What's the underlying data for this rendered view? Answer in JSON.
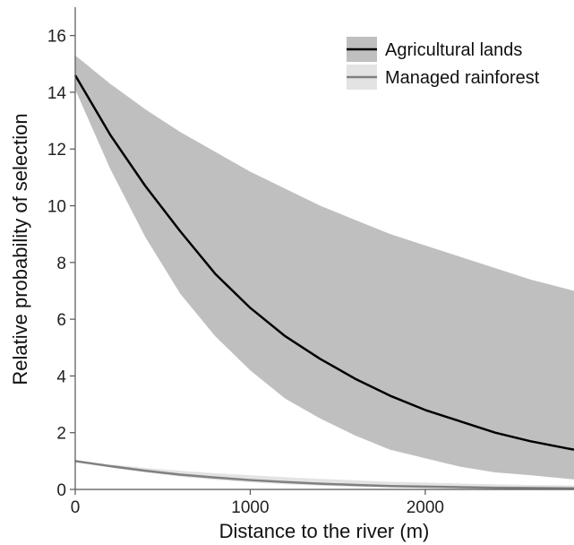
{
  "chart_data": {
    "type": "line",
    "xlabel": "Distance to the river (m)",
    "ylabel": "Relative probability of selection",
    "xlim": [
      0,
      2850
    ],
    "ylim": [
      0,
      17
    ],
    "x_ticks": [
      0,
      1000,
      2000
    ],
    "y_ticks": [
      0,
      2,
      4,
      6,
      8,
      10,
      12,
      14,
      16
    ],
    "grid": false,
    "legend_position": "top-right",
    "series": [
      {
        "name": "Agricultural lands",
        "line_color": "#000000",
        "band_color": "#bfbfbf",
        "x": [
          0,
          200,
          400,
          600,
          800,
          1000,
          1200,
          1400,
          1600,
          1800,
          2000,
          2200,
          2400,
          2600,
          2850
        ],
        "y": [
          14.6,
          12.5,
          10.7,
          9.1,
          7.6,
          6.4,
          5.4,
          4.6,
          3.9,
          3.3,
          2.8,
          2.4,
          2.0,
          1.7,
          1.4
        ],
        "lower": [
          14.1,
          11.3,
          8.9,
          6.9,
          5.4,
          4.2,
          3.2,
          2.5,
          1.9,
          1.4,
          1.1,
          0.8,
          0.6,
          0.5,
          0.35
        ],
        "upper": [
          15.3,
          14.3,
          13.4,
          12.6,
          11.9,
          11.2,
          10.6,
          10.0,
          9.5,
          9.0,
          8.6,
          8.2,
          7.8,
          7.4,
          7.0
        ]
      },
      {
        "name": "Managed rainforest",
        "line_color": "#808080",
        "band_color": "#e3e3e3",
        "x": [
          0,
          200,
          400,
          600,
          800,
          1000,
          1200,
          1400,
          1600,
          1800,
          2000,
          2200,
          2400,
          2600,
          2850
        ],
        "y": [
          1.0,
          0.82,
          0.66,
          0.52,
          0.42,
          0.33,
          0.26,
          0.2,
          0.16,
          0.12,
          0.1,
          0.08,
          0.06,
          0.05,
          0.04
        ],
        "lower": [
          0.98,
          0.78,
          0.6,
          0.45,
          0.34,
          0.25,
          0.18,
          0.13,
          0.09,
          0.07,
          0.05,
          0.04,
          0.03,
          0.02,
          0.02
        ],
        "upper": [
          1.02,
          0.88,
          0.76,
          0.66,
          0.57,
          0.5,
          0.43,
          0.37,
          0.32,
          0.27,
          0.24,
          0.21,
          0.18,
          0.16,
          0.14
        ]
      }
    ]
  }
}
